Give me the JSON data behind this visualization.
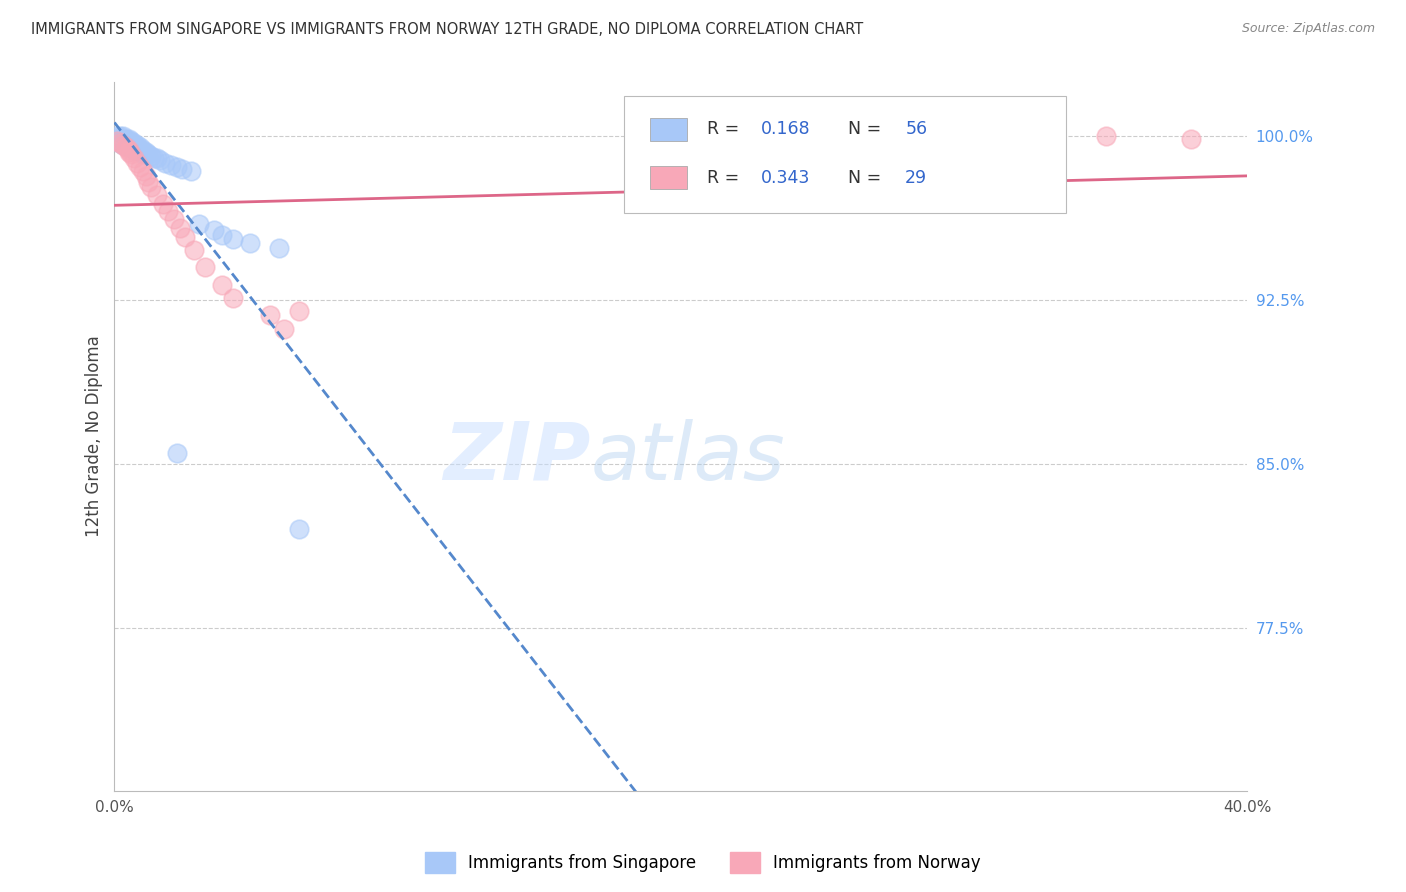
{
  "title": "IMMIGRANTS FROM SINGAPORE VS IMMIGRANTS FROM NORWAY 12TH GRADE, NO DIPLOMA CORRELATION CHART",
  "source": "Source: ZipAtlas.com",
  "xlim": [
    0.0,
    0.4
  ],
  "ylim": [
    0.7,
    1.025
  ],
  "y_ticks": [
    0.775,
    0.85,
    0.925,
    1.0
  ],
  "y_tick_labels": [
    "77.5%",
    "85.0%",
    "92.5%",
    "100.0%"
  ],
  "watermark_zip": "ZIP",
  "watermark_atlas": "atlas",
  "legend_label1": "Immigrants from Singapore",
  "legend_label2": "Immigrants from Norway",
  "color_singapore": "#A8C8F8",
  "color_norway": "#F8A8B8",
  "color_singapore_line": "#5588CC",
  "color_norway_line": "#DD6688",
  "color_ytick": "#5599EE",
  "color_grid": "#CCCCCC",
  "color_title": "#333333",
  "color_source": "#888888",
  "sg_x": [
    0.001,
    0.001,
    0.001,
    0.002,
    0.002,
    0.002,
    0.002,
    0.003,
    0.003,
    0.003,
    0.003,
    0.003,
    0.004,
    0.004,
    0.004,
    0.004,
    0.005,
    0.005,
    0.005,
    0.005,
    0.005,
    0.006,
    0.006,
    0.006,
    0.007,
    0.007,
    0.007,
    0.007,
    0.008,
    0.008,
    0.008,
    0.009,
    0.009,
    0.01,
    0.01,
    0.01,
    0.011,
    0.011,
    0.012,
    0.013,
    0.014,
    0.015,
    0.016,
    0.018,
    0.02,
    0.022,
    0.024,
    0.027,
    0.03,
    0.035,
    0.038,
    0.042,
    0.048,
    0.022,
    0.058,
    0.065
  ],
  "sg_y": [
    1.0,
    0.999,
    0.998,
    1.0,
    0.999,
    0.998,
    0.997,
    1.0,
    0.999,
    0.998,
    0.997,
    0.996,
    0.999,
    0.998,
    0.997,
    0.996,
    0.999,
    0.998,
    0.997,
    0.996,
    0.995,
    0.998,
    0.997,
    0.996,
    0.997,
    0.996,
    0.995,
    0.994,
    0.996,
    0.995,
    0.994,
    0.995,
    0.994,
    0.994,
    0.993,
    0.992,
    0.993,
    0.992,
    0.992,
    0.991,
    0.99,
    0.99,
    0.989,
    0.988,
    0.987,
    0.986,
    0.985,
    0.984,
    0.96,
    0.957,
    0.955,
    0.953,
    0.951,
    0.855,
    0.949,
    0.82
  ],
  "no_x": [
    0.001,
    0.002,
    0.003,
    0.004,
    0.005,
    0.005,
    0.006,
    0.007,
    0.008,
    0.009,
    0.01,
    0.011,
    0.012,
    0.013,
    0.015,
    0.017,
    0.019,
    0.021,
    0.023,
    0.025,
    0.028,
    0.032,
    0.038,
    0.042,
    0.055,
    0.06,
    0.35,
    0.38,
    0.065
  ],
  "no_y": [
    0.998,
    0.997,
    0.996,
    0.995,
    0.994,
    0.993,
    0.992,
    0.99,
    0.988,
    0.986,
    0.984,
    0.982,
    0.979,
    0.977,
    0.973,
    0.969,
    0.966,
    0.962,
    0.958,
    0.954,
    0.948,
    0.94,
    0.932,
    0.926,
    0.918,
    0.912,
    1.0,
    0.999,
    0.92
  ]
}
